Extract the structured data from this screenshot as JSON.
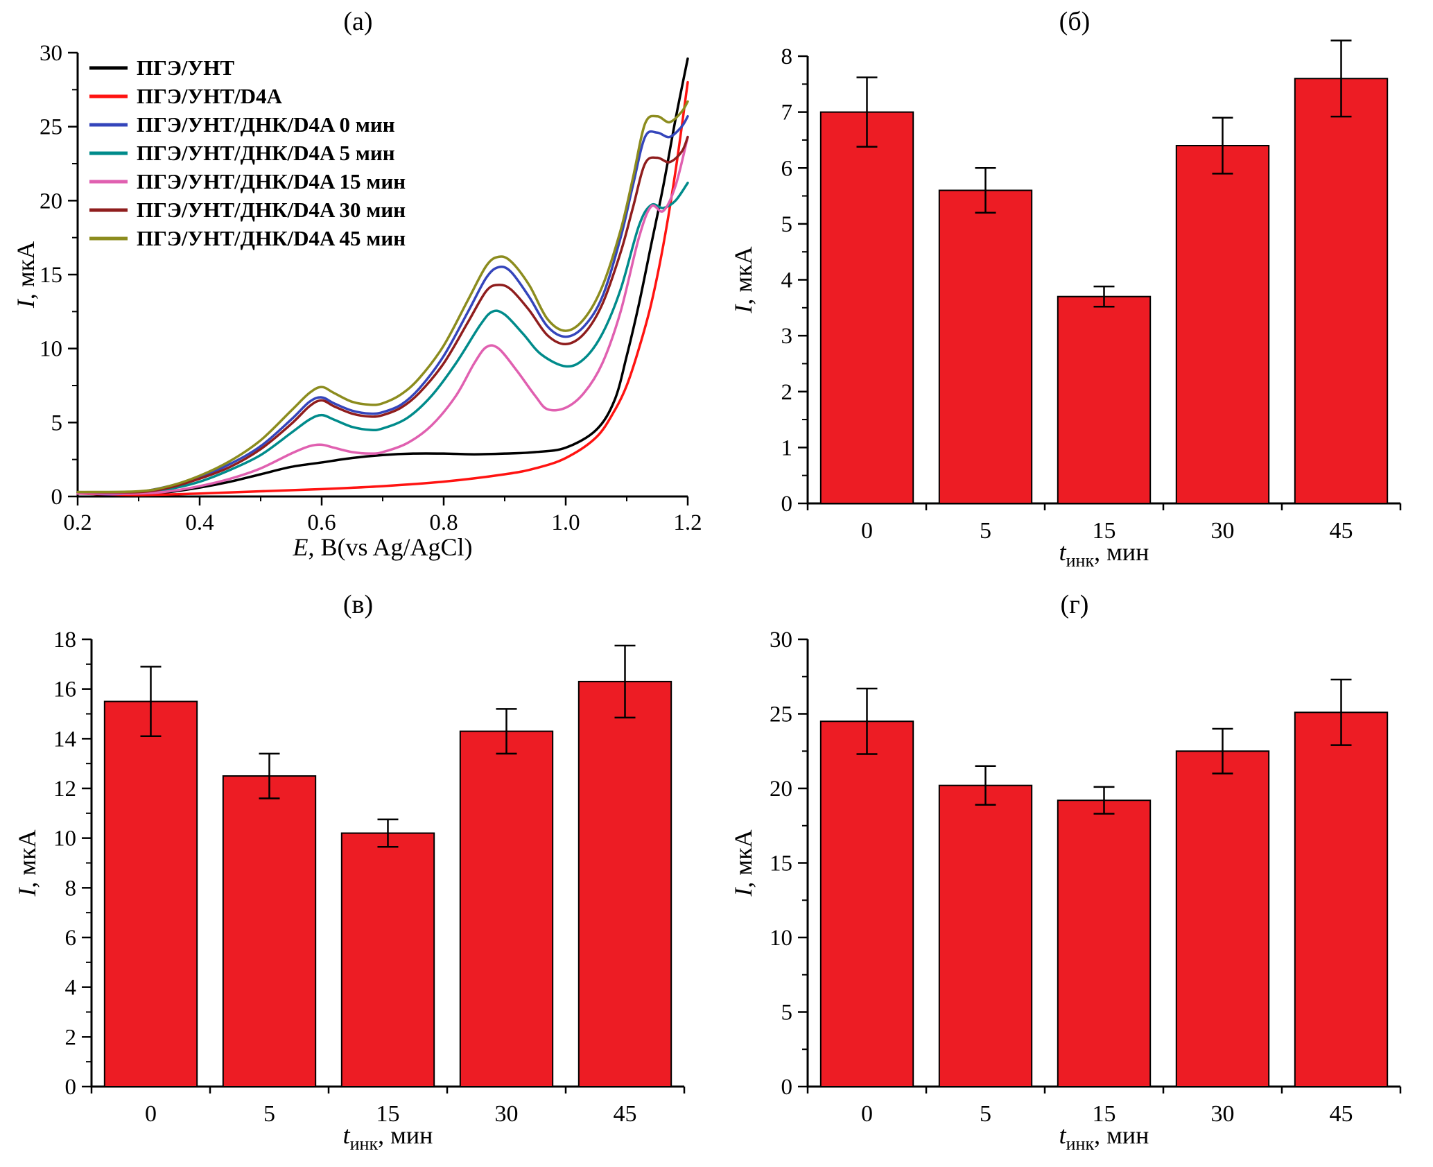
{
  "figure": {
    "background": "#ffffff",
    "bar_color": "#ed1c24",
    "axis_color": "#000000"
  },
  "chart_data": [
    {
      "type": "line",
      "panel": "(а)",
      "xlabel": {
        "italic": "E",
        "rest": ", B(vs Ag/AgCl)"
      },
      "ylabel": {
        "italic": "I",
        "rest": ", мкА"
      },
      "xlim": [
        0.2,
        1.2
      ],
      "ylim": [
        0,
        30
      ],
      "xticks": [
        "0.2",
        "0.4",
        "0.6",
        "0.8",
        "1.0",
        "1.2"
      ],
      "yticks": [
        0,
        5,
        10,
        15,
        20,
        25,
        30
      ],
      "x_minor_step": 0.1,
      "y_minor_step": 2.5,
      "legend_position": "top-left",
      "series": [
        {
          "name": "ПГЭ/УНТ",
          "color": "#000000",
          "points": [
            [
              0.2,
              0.3
            ],
            [
              0.25,
              0.1
            ],
            [
              0.3,
              0.15
            ],
            [
              0.35,
              0.3
            ],
            [
              0.4,
              0.6
            ],
            [
              0.45,
              1.0
            ],
            [
              0.5,
              1.5
            ],
            [
              0.55,
              2.0
            ],
            [
              0.6,
              2.3
            ],
            [
              0.65,
              2.6
            ],
            [
              0.7,
              2.8
            ],
            [
              0.75,
              2.9
            ],
            [
              0.8,
              2.9
            ],
            [
              0.85,
              2.85
            ],
            [
              0.9,
              2.9
            ],
            [
              0.95,
              3.0
            ],
            [
              1.0,
              3.3
            ],
            [
              1.05,
              4.5
            ],
            [
              1.08,
              6.5
            ],
            [
              1.1,
              9.5
            ],
            [
              1.12,
              13.0
            ],
            [
              1.14,
              17.0
            ],
            [
              1.16,
              21.0
            ],
            [
              1.18,
              25.5
            ],
            [
              1.2,
              29.6
            ]
          ]
        },
        {
          "name": "ПГЭ/УНТ/D4A",
          "color": "#ff1311",
          "points": [
            [
              0.2,
              0.2
            ],
            [
              0.3,
              0.1
            ],
            [
              0.4,
              0.2
            ],
            [
              0.5,
              0.35
            ],
            [
              0.6,
              0.5
            ],
            [
              0.7,
              0.7
            ],
            [
              0.8,
              1.0
            ],
            [
              0.9,
              1.5
            ],
            [
              0.95,
              1.9
            ],
            [
              1.0,
              2.6
            ],
            [
              1.05,
              4.0
            ],
            [
              1.08,
              5.8
            ],
            [
              1.1,
              7.5
            ],
            [
              1.12,
              10.0
            ],
            [
              1.14,
              13.0
            ],
            [
              1.16,
              17.0
            ],
            [
              1.18,
              22.0
            ],
            [
              1.2,
              28.0
            ]
          ]
        },
        {
          "name": "ПГЭ/УНТ/ДНК/D4A 0 мин",
          "color": "#3445bb",
          "points": [
            [
              0.2,
              0.3
            ],
            [
              0.25,
              0.15
            ],
            [
              0.3,
              0.3
            ],
            [
              0.35,
              0.7
            ],
            [
              0.4,
              1.3
            ],
            [
              0.45,
              2.2
            ],
            [
              0.5,
              3.4
            ],
            [
              0.55,
              5.2
            ],
            [
              0.58,
              6.4
            ],
            [
              0.6,
              6.7
            ],
            [
              0.62,
              6.3
            ],
            [
              0.65,
              5.8
            ],
            [
              0.68,
              5.6
            ],
            [
              0.7,
              5.7
            ],
            [
              0.73,
              6.2
            ],
            [
              0.76,
              7.3
            ],
            [
              0.8,
              9.5
            ],
            [
              0.84,
              12.5
            ],
            [
              0.87,
              14.8
            ],
            [
              0.89,
              15.5
            ],
            [
              0.91,
              15.2
            ],
            [
              0.94,
              13.5
            ],
            [
              0.97,
              11.5
            ],
            [
              1.0,
              10.8
            ],
            [
              1.03,
              11.5
            ],
            [
              1.06,
              13.5
            ],
            [
              1.09,
              17.5
            ],
            [
              1.11,
              21.0
            ],
            [
              1.13,
              24.3
            ],
            [
              1.15,
              24.6
            ],
            [
              1.17,
              24.3
            ],
            [
              1.19,
              25.0
            ],
            [
              1.2,
              25.7
            ]
          ]
        },
        {
          "name": "ПГЭ/УНТ/ДНК/D4A 5 мин",
          "color": "#008b8b",
          "points": [
            [
              0.2,
              0.25
            ],
            [
              0.3,
              0.25
            ],
            [
              0.35,
              0.5
            ],
            [
              0.4,
              1.0
            ],
            [
              0.45,
              1.8
            ],
            [
              0.5,
              2.8
            ],
            [
              0.55,
              4.3
            ],
            [
              0.58,
              5.2
            ],
            [
              0.6,
              5.5
            ],
            [
              0.62,
              5.2
            ],
            [
              0.65,
              4.7
            ],
            [
              0.68,
              4.5
            ],
            [
              0.7,
              4.6
            ],
            [
              0.74,
              5.3
            ],
            [
              0.78,
              6.8
            ],
            [
              0.82,
              9.0
            ],
            [
              0.86,
              11.6
            ],
            [
              0.88,
              12.5
            ],
            [
              0.9,
              12.3
            ],
            [
              0.93,
              11.0
            ],
            [
              0.96,
              9.6
            ],
            [
              1.0,
              8.8
            ],
            [
              1.03,
              9.3
            ],
            [
              1.06,
              11.0
            ],
            [
              1.09,
              14.0
            ],
            [
              1.12,
              18.3
            ],
            [
              1.14,
              19.7
            ],
            [
              1.16,
              19.5
            ],
            [
              1.18,
              20.0
            ],
            [
              1.2,
              21.2
            ]
          ]
        },
        {
          "name": "ПГЭ/УНТ/ДНК/D4A 15 мин",
          "color": "#e060b0",
          "points": [
            [
              0.2,
              0.2
            ],
            [
              0.3,
              0.2
            ],
            [
              0.35,
              0.35
            ],
            [
              0.4,
              0.7
            ],
            [
              0.45,
              1.2
            ],
            [
              0.5,
              1.9
            ],
            [
              0.55,
              2.9
            ],
            [
              0.58,
              3.4
            ],
            [
              0.6,
              3.5
            ],
            [
              0.62,
              3.3
            ],
            [
              0.65,
              3.0
            ],
            [
              0.68,
              2.9
            ],
            [
              0.7,
              3.0
            ],
            [
              0.74,
              3.6
            ],
            [
              0.78,
              4.8
            ],
            [
              0.82,
              6.8
            ],
            [
              0.85,
              9.0
            ],
            [
              0.87,
              10.1
            ],
            [
              0.89,
              10.0
            ],
            [
              0.92,
              8.5
            ],
            [
              0.95,
              6.8
            ],
            [
              0.97,
              5.9
            ],
            [
              1.0,
              6.0
            ],
            [
              1.03,
              7.0
            ],
            [
              1.06,
              9.0
            ],
            [
              1.09,
              12.5
            ],
            [
              1.12,
              17.5
            ],
            [
              1.14,
              19.6
            ],
            [
              1.16,
              19.3
            ],
            [
              1.18,
              21.0
            ],
            [
              1.2,
              24.3
            ]
          ]
        },
        {
          "name": "ПГЭ/УНТ/ДНК/D4A 30 мин",
          "color": "#8f1d1d",
          "points": [
            [
              0.2,
              0.3
            ],
            [
              0.3,
              0.3
            ],
            [
              0.35,
              0.6
            ],
            [
              0.4,
              1.2
            ],
            [
              0.45,
              2.0
            ],
            [
              0.5,
              3.2
            ],
            [
              0.55,
              4.9
            ],
            [
              0.58,
              6.1
            ],
            [
              0.6,
              6.5
            ],
            [
              0.62,
              6.1
            ],
            [
              0.65,
              5.6
            ],
            [
              0.68,
              5.4
            ],
            [
              0.7,
              5.5
            ],
            [
              0.73,
              6.0
            ],
            [
              0.76,
              7.0
            ],
            [
              0.8,
              9.0
            ],
            [
              0.84,
              11.8
            ],
            [
              0.87,
              13.9
            ],
            [
              0.89,
              14.3
            ],
            [
              0.91,
              14.0
            ],
            [
              0.94,
              12.6
            ],
            [
              0.97,
              10.9
            ],
            [
              1.0,
              10.3
            ],
            [
              1.03,
              11.0
            ],
            [
              1.06,
              13.0
            ],
            [
              1.09,
              16.5
            ],
            [
              1.11,
              19.5
            ],
            [
              1.13,
              22.5
            ],
            [
              1.15,
              22.9
            ],
            [
              1.17,
              22.6
            ],
            [
              1.19,
              23.3
            ],
            [
              1.2,
              24.3
            ]
          ]
        },
        {
          "name": "ПГЭ/УНТ/ДНК/D4A 45 мин",
          "color": "#8c8c1e",
          "points": [
            [
              0.2,
              0.3
            ],
            [
              0.3,
              0.35
            ],
            [
              0.35,
              0.7
            ],
            [
              0.4,
              1.4
            ],
            [
              0.45,
              2.4
            ],
            [
              0.5,
              3.8
            ],
            [
              0.55,
              5.8
            ],
            [
              0.58,
              7.0
            ],
            [
              0.6,
              7.4
            ],
            [
              0.62,
              7.0
            ],
            [
              0.65,
              6.4
            ],
            [
              0.68,
              6.2
            ],
            [
              0.7,
              6.3
            ],
            [
              0.73,
              6.9
            ],
            [
              0.76,
              8.0
            ],
            [
              0.8,
              10.2
            ],
            [
              0.84,
              13.3
            ],
            [
              0.87,
              15.6
            ],
            [
              0.89,
              16.2
            ],
            [
              0.91,
              15.9
            ],
            [
              0.94,
              14.3
            ],
            [
              0.97,
              12.0
            ],
            [
              1.0,
              11.2
            ],
            [
              1.03,
              12.0
            ],
            [
              1.06,
              14.2
            ],
            [
              1.09,
              18.0
            ],
            [
              1.11,
              21.5
            ],
            [
              1.13,
              25.2
            ],
            [
              1.15,
              25.7
            ],
            [
              1.17,
              25.3
            ],
            [
              1.19,
              26.0
            ],
            [
              1.2,
              26.7
            ]
          ]
        }
      ]
    },
    {
      "type": "bar",
      "panel": "(б)",
      "categories": [
        "0",
        "5",
        "15",
        "30",
        "45"
      ],
      "values": [
        7.0,
        5.6,
        3.7,
        6.4,
        7.6
      ],
      "errors": [
        0.62,
        0.4,
        0.18,
        0.5,
        0.68
      ],
      "ylim": [
        0,
        8
      ],
      "yticks": [
        0,
        1,
        2,
        3,
        4,
        5,
        6,
        7,
        8
      ],
      "y_minor_step": 0.5,
      "bar_color": "#ed1c24",
      "xlabel": {
        "italic": "t",
        "sub": "инк",
        "rest": ", мин"
      },
      "ylabel": {
        "italic": "I",
        "rest": ", мкА"
      }
    },
    {
      "type": "bar",
      "panel": "(в)",
      "categories": [
        "0",
        "5",
        "15",
        "30",
        "45"
      ],
      "values": [
        15.5,
        12.5,
        10.2,
        14.3,
        16.3
      ],
      "errors": [
        1.4,
        0.9,
        0.55,
        0.9,
        1.45
      ],
      "ylim": [
        0,
        18
      ],
      "yticks": [
        0,
        2,
        4,
        6,
        8,
        10,
        12,
        14,
        16,
        18
      ],
      "y_minor_step": 1,
      "bar_color": "#ed1c24",
      "xlabel": {
        "italic": "t",
        "sub": "инк",
        "rest": ", мин"
      },
      "ylabel": {
        "italic": "I",
        "rest": ", мкА"
      }
    },
    {
      "type": "bar",
      "panel": "(г)",
      "categories": [
        "0",
        "5",
        "15",
        "30",
        "45"
      ],
      "values": [
        24.5,
        20.2,
        19.2,
        22.5,
        25.1
      ],
      "errors": [
        2.2,
        1.3,
        0.9,
        1.5,
        2.2
      ],
      "ylim": [
        0,
        30
      ],
      "yticks": [
        0,
        5,
        10,
        15,
        20,
        25,
        30
      ],
      "y_minor_step": 2.5,
      "bar_color": "#ed1c24",
      "xlabel": {
        "italic": "t",
        "sub": "инк",
        "rest": ", мин"
      },
      "ylabel": {
        "italic": "I",
        "rest": ", мкА"
      }
    }
  ]
}
